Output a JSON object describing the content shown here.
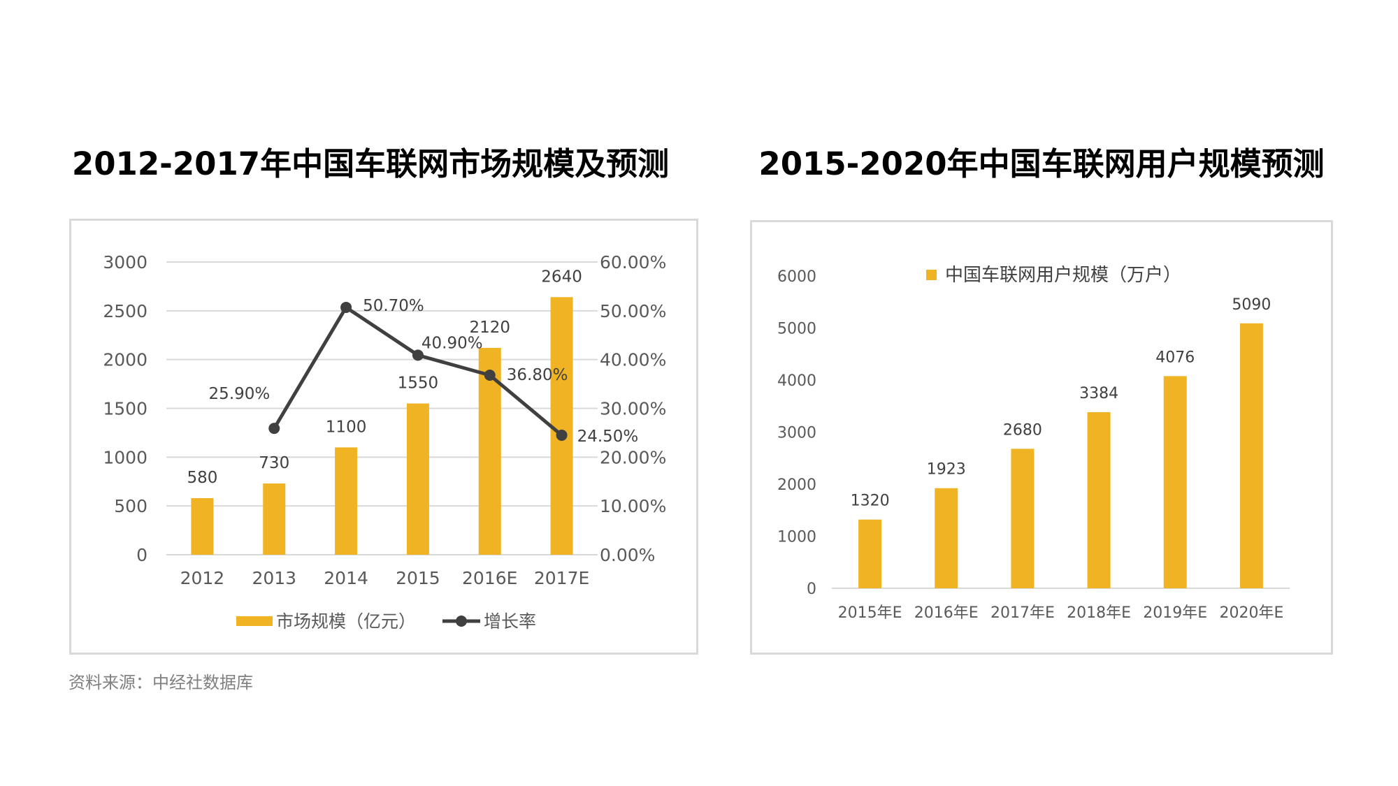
{
  "chart_data": [
    {
      "type": "bar",
      "title": "2012-2017年中国车联网市场规模及预测",
      "categories": [
        "2012",
        "2013",
        "2014",
        "2015",
        "2016E",
        "2017E"
      ],
      "series": [
        {
          "name": "市场规模（亿元）",
          "type": "bar",
          "axis": "left",
          "values": [
            580,
            730,
            1100,
            1550,
            2120,
            2640
          ],
          "labels": [
            "580",
            "730",
            "1100",
            "1550",
            "2120",
            "2640"
          ]
        },
        {
          "name": "增长率",
          "type": "line",
          "axis": "right",
          "values": [
            null,
            25.9,
            50.7,
            40.9,
            36.8,
            24.5
          ],
          "labels": [
            "",
            "25.90%",
            "50.70%",
            "40.90%",
            "36.80%",
            "24.50%"
          ]
        }
      ],
      "ylim": [
        0,
        3000
      ],
      "yticks": [
        "0",
        "500",
        "1000",
        "1500",
        "2000",
        "2500",
        "3000"
      ],
      "y2lim": [
        0,
        60
      ],
      "y2ticks": [
        "0.00%",
        "10.00%",
        "20.00%",
        "30.00%",
        "40.00%",
        "50.00%",
        "60.00%"
      ],
      "xlabel": "",
      "ylabel": "",
      "grid": true,
      "legend": "bottom"
    },
    {
      "type": "bar",
      "title": "2015-2020年中国车联网用户规模预测",
      "categories": [
        "2015年E",
        "2016年E",
        "2017年E",
        "2018年E",
        "2019年E",
        "2020年E"
      ],
      "series": [
        {
          "name": "中国车联网用户规模（万户）",
          "values": [
            1320,
            1923,
            2680,
            3384,
            4076,
            5090
          ],
          "labels": [
            "1320",
            "1923",
            "2680",
            "3384",
            "4076",
            "5090"
          ]
        }
      ],
      "ylim": [
        0,
        6000
      ],
      "yticks": [
        "0",
        "1000",
        "2000",
        "3000",
        "4000",
        "5000",
        "6000"
      ],
      "xlabel": "",
      "ylabel": "",
      "grid": false,
      "legend": "top"
    }
  ],
  "source": "资料来源：中经社数据库",
  "colors": {
    "bar": "#F0B323",
    "line": "#404040",
    "grid": "#d9d9d9",
    "axis_text": "#595959",
    "frame": "#d9d9d9"
  }
}
